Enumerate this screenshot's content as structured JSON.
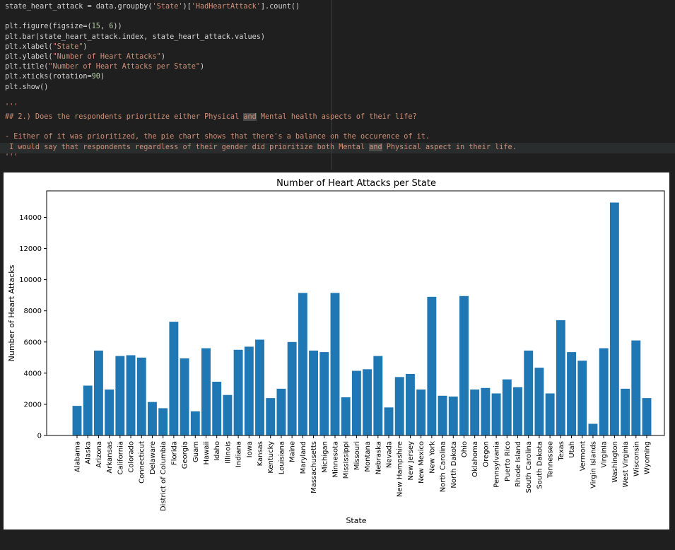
{
  "code_lines": [
    [
      {
        "t": "state_heart_attack = data.groupby("
      },
      {
        "t": "'State'",
        "c": "s"
      },
      {
        "t": ")["
      },
      {
        "t": "'HadHeartAttack'",
        "c": "s"
      },
      {
        "t": "].count()"
      }
    ],
    [],
    [
      {
        "t": "plt.figure(figsize=("
      },
      {
        "t": "15",
        "c": "n"
      },
      {
        "t": ", "
      },
      {
        "t": "6",
        "c": "n"
      },
      {
        "t": "))"
      }
    ],
    [
      {
        "t": "plt.bar(state_heart_attack.index, state_heart_attack.values)"
      }
    ],
    [
      {
        "t": "plt.xlabel("
      },
      {
        "t": "\"State\"",
        "c": "s"
      },
      {
        "t": ")"
      }
    ],
    [
      {
        "t": "plt.ylabel("
      },
      {
        "t": "\"Number of Heart Attacks\"",
        "c": "s"
      },
      {
        "t": ")"
      }
    ],
    [
      {
        "t": "plt.title("
      },
      {
        "t": "\"Number of Heart Attacks per State\"",
        "c": "s"
      },
      {
        "t": ")"
      }
    ],
    [
      {
        "t": "plt.xticks(rotation="
      },
      {
        "t": "90",
        "c": "n"
      },
      {
        "t": ")"
      }
    ],
    [
      {
        "t": "plt.show()"
      }
    ],
    [],
    [
      {
        "t": "'''",
        "c": "c"
      }
    ],
    [
      {
        "t": "## 2.) Does the respondents prioritize either Physical ",
        "c": "c"
      },
      {
        "t": "and",
        "c": "c hl"
      },
      {
        "t": " Mental health aspects of their life?",
        "c": "c"
      }
    ],
    [],
    [
      {
        "t": "- Either of it was prioritized, the pie chart shows that there's a balance on the occurence of it.",
        "c": "c"
      }
    ],
    [
      {
        "t": " I would say that respondents regardless of their gender did prioritize both Mental ",
        "c": "c"
      },
      {
        "t": "and",
        "c": "c hl"
      },
      {
        "t": " Physical aspect in their life.",
        "c": "c"
      }
    ],
    [
      {
        "t": "'''",
        "c": "c"
      }
    ]
  ],
  "chart_data": {
    "type": "bar",
    "title": "Number of Heart Attacks per State",
    "xlabel": "State",
    "ylabel": "Number of Heart Attacks",
    "ylim": [
      0,
      15700
    ],
    "yticks": [
      0,
      2000,
      4000,
      6000,
      8000,
      10000,
      12000,
      14000
    ],
    "color": "#1f77b4",
    "categories": [
      "Alabama",
      "Alaska",
      "Arizona",
      "Arkansas",
      "California",
      "Colorado",
      "Connecticut",
      "Delaware",
      "District of Columbia",
      "Florida",
      "Georgia",
      "Guam",
      "Hawaii",
      "Idaho",
      "Illinois",
      "Indiana",
      "Iowa",
      "Kansas",
      "Kentucky",
      "Louisiana",
      "Maine",
      "Maryland",
      "Massachusetts",
      "Michigan",
      "Minnesota",
      "Mississippi",
      "Missouri",
      "Montana",
      "Nebraska",
      "Nevada",
      "New Hampshire",
      "New Jersey",
      "New Mexico",
      "New York",
      "North Carolina",
      "North Dakota",
      "Ohio",
      "Oklahoma",
      "Oregon",
      "Pennsylvania",
      "Puerto Rico",
      "Rhode Island",
      "South Carolina",
      "South Dakota",
      "Tennessee",
      "Texas",
      "Utah",
      "Vermont",
      "Virgin Islands",
      "Virginia",
      "Washington",
      "West Virginia",
      "Wisconsin",
      "Wyoming"
    ],
    "values": [
      1900,
      3200,
      5450,
      2950,
      5100,
      5150,
      5000,
      2150,
      1750,
      7300,
      4950,
      1550,
      5600,
      3450,
      2600,
      5500,
      5700,
      6150,
      2400,
      3000,
      6000,
      9150,
      5450,
      5350,
      9150,
      2450,
      4150,
      4250,
      5100,
      1800,
      3750,
      3950,
      2950,
      8900,
      2550,
      2500,
      8950,
      2950,
      3050,
      2700,
      3600,
      3100,
      5450,
      4350,
      2700,
      7400,
      5350,
      4800,
      750,
      5600,
      14950,
      3000,
      6100,
      2400
    ]
  }
}
